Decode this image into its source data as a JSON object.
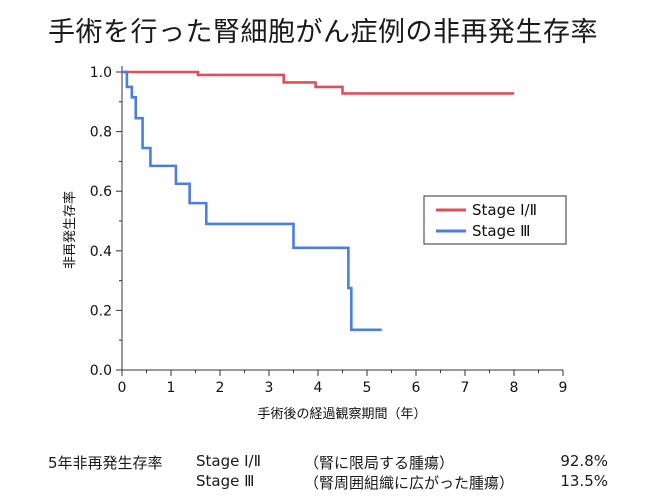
{
  "title": "手術を行った腎細胞がん症例の非再発生存率",
  "chart_data": {
    "type": "line",
    "line_shape": "step",
    "xlabel": "手術後の経過観察期間（年）",
    "ylabel": "非再発生存率",
    "xlim": [
      0,
      9
    ],
    "ylim": [
      0,
      1.0
    ],
    "xticks": [
      "0",
      "1",
      "2",
      "3",
      "4",
      "5",
      "6",
      "7",
      "8",
      "9"
    ],
    "yticks": [
      "0.0",
      "0.2",
      "0.4",
      "0.6",
      "0.8",
      "1.0"
    ],
    "grid": false,
    "legend_position": "right",
    "series": [
      {
        "name": "Stage Ⅰ/Ⅱ",
        "color": "#e0505a",
        "x": [
          0,
          1.55,
          3.3,
          3.95,
          4.5,
          8.0
        ],
        "y": [
          1.0,
          0.99,
          0.965,
          0.95,
          0.928,
          0.928
        ]
      },
      {
        "name": "Stage Ⅲ",
        "color": "#4a7fe0",
        "x": [
          0,
          0.1,
          0.2,
          0.28,
          0.42,
          0.58,
          1.1,
          1.38,
          1.72,
          3.5,
          4.62,
          4.68,
          5.3
        ],
        "y": [
          1.0,
          0.95,
          0.915,
          0.845,
          0.745,
          0.685,
          0.625,
          0.56,
          0.49,
          0.41,
          0.275,
          0.135,
          0.135
        ]
      }
    ]
  },
  "footer": {
    "heading": "5年非再発生存率",
    "rows": [
      {
        "stage": "Stage Ⅰ/Ⅱ",
        "desc": "（腎に限局する腫瘍）",
        "rate": "92.8%"
      },
      {
        "stage": "Stage Ⅲ",
        "desc": "（腎周囲組織に広がった腫瘍）",
        "rate": "13.5%"
      }
    ]
  }
}
